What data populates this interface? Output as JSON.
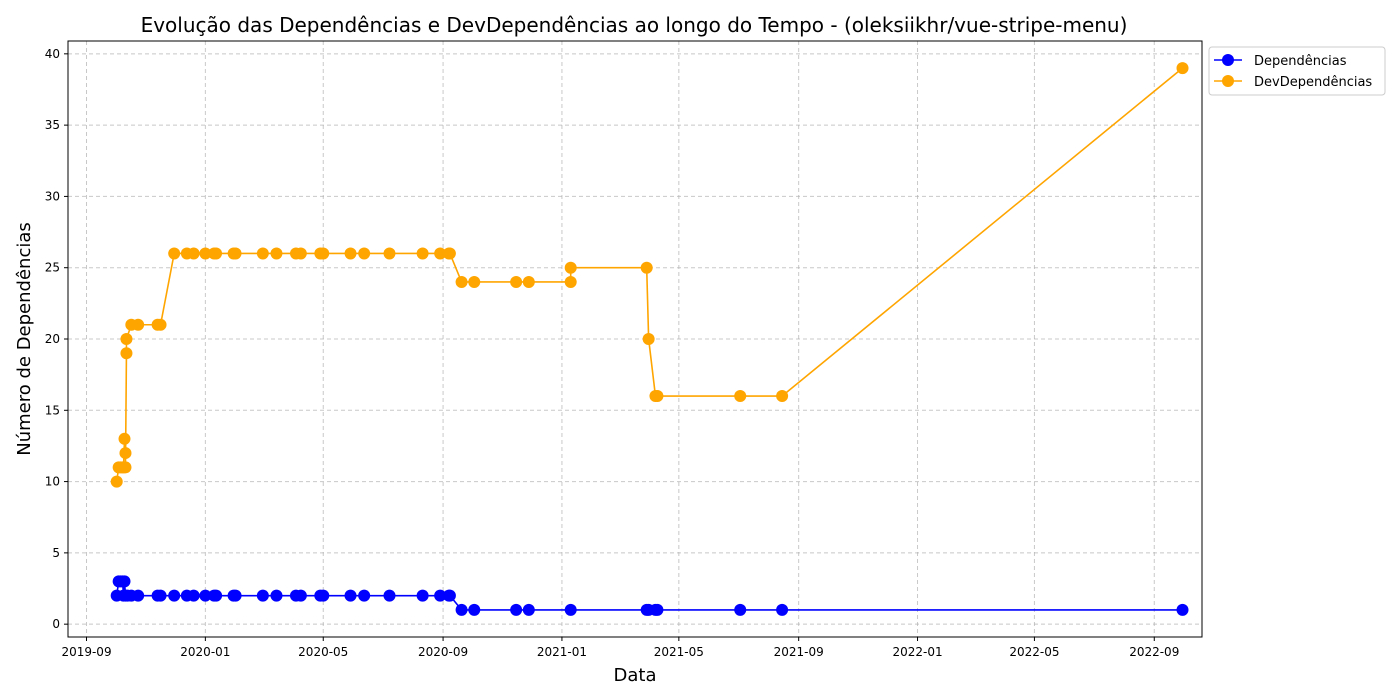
{
  "chart_data": {
    "type": "line",
    "title": "Evolução das Dependências e DevDependências ao longo do Tempo - (oleksiikhr/vue-stripe-menu)",
    "xlabel": "Data",
    "ylabel": "Número de Dependências",
    "x_ticks": [
      "2019-09",
      "2020-01",
      "2020-05",
      "2020-09",
      "2021-01",
      "2021-05",
      "2021-09",
      "2022-01",
      "2022-05",
      "2022-09"
    ],
    "y_ticks": [
      0,
      5,
      10,
      15,
      20,
      25,
      30,
      35,
      40
    ],
    "xlim": [
      "2019-08-13",
      "2022-10-20"
    ],
    "ylim": [
      -0.9,
      40.9
    ],
    "grid": true,
    "legend_position": "top-right-outside",
    "series": [
      {
        "name": "Dependências",
        "color": "#0000ff",
        "x": [
          "2019-10-02",
          "2019-10-04",
          "2019-10-06",
          "2019-10-08",
          "2019-10-09",
          "2019-10-10",
          "2019-10-11",
          "2019-10-13",
          "2019-10-17",
          "2019-10-24",
          "2019-11-13",
          "2019-11-16",
          "2019-11-30",
          "2019-12-13",
          "2019-12-20",
          "2020-01-01",
          "2020-01-10",
          "2020-01-12",
          "2020-01-30",
          "2020-02-01",
          "2020-02-29",
          "2020-03-14",
          "2020-04-03",
          "2020-04-08",
          "2020-04-28",
          "2020-05-01",
          "2020-05-29",
          "2020-06-12",
          "2020-07-08",
          "2020-08-11",
          "2020-08-29",
          "2020-09-07",
          "2020-09-08",
          "2020-09-20",
          "2020-10-03",
          "2020-11-15",
          "2020-11-28",
          "2021-01-10",
          "2021-03-29",
          "2021-03-31",
          "2021-04-07",
          "2021-04-09",
          "2021-07-03",
          "2021-08-15",
          "2022-09-30"
        ],
        "y": [
          2,
          3,
          3,
          3,
          2,
          3,
          2,
          2,
          2,
          2,
          2,
          2,
          2,
          2,
          2,
          2,
          2,
          2,
          2,
          2,
          2,
          2,
          2,
          2,
          2,
          2,
          2,
          2,
          2,
          2,
          2,
          2,
          2,
          1,
          1,
          1,
          1,
          1,
          1,
          1,
          1,
          1,
          1,
          1,
          1
        ]
      },
      {
        "name": "DevDependências",
        "color": "#ffa500",
        "x": [
          "2019-10-02",
          "2019-10-04",
          "2019-10-06",
          "2019-10-08",
          "2019-10-09",
          "2019-10-10",
          "2019-10-11",
          "2019-10-11",
          "2019-10-12",
          "2019-10-12",
          "2019-10-17",
          "2019-10-24",
          "2019-11-13",
          "2019-11-16",
          "2019-11-30",
          "2019-12-13",
          "2019-12-20",
          "2020-01-01",
          "2020-01-10",
          "2020-01-12",
          "2020-01-30",
          "2020-02-01",
          "2020-02-29",
          "2020-03-14",
          "2020-04-03",
          "2020-04-08",
          "2020-04-28",
          "2020-05-01",
          "2020-05-29",
          "2020-06-12",
          "2020-07-08",
          "2020-08-11",
          "2020-08-29",
          "2020-09-07",
          "2020-09-08",
          "2020-09-20",
          "2020-10-03",
          "2020-11-15",
          "2020-11-28",
          "2021-01-10",
          "2021-01-10",
          "2021-03-29",
          "2021-03-31",
          "2021-04-07",
          "2021-04-09",
          "2021-07-03",
          "2021-08-15",
          "2022-09-30"
        ],
        "y": [
          10,
          11,
          11,
          11,
          11,
          13,
          12,
          11,
          19,
          20,
          21,
          21,
          21,
          21,
          26,
          26,
          26,
          26,
          26,
          26,
          26,
          26,
          26,
          26,
          26,
          26,
          26,
          26,
          26,
          26,
          26,
          26,
          26,
          26,
          26,
          24,
          24,
          24,
          24,
          24,
          25,
          25,
          20,
          16,
          16,
          16,
          16,
          39
        ]
      }
    ]
  }
}
